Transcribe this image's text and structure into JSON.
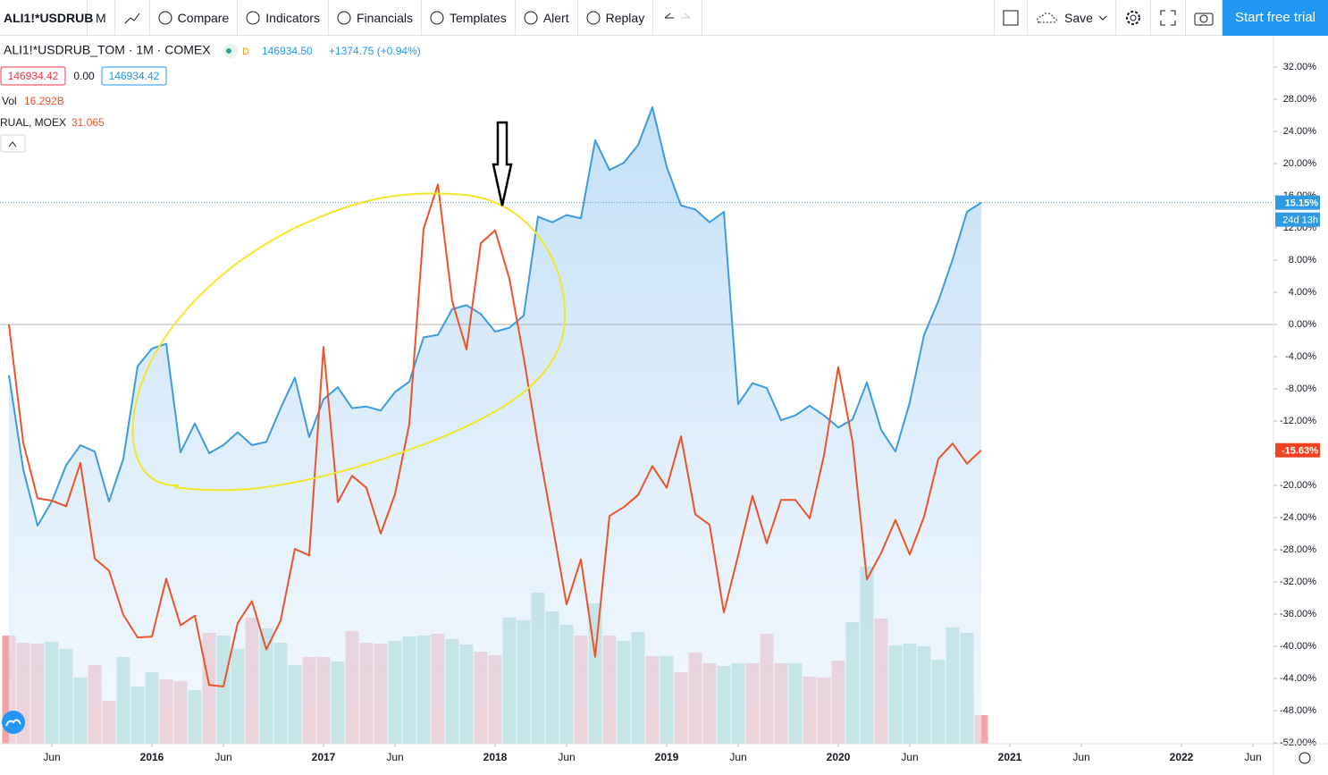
{
  "toolbar": {
    "symbol": "ALI1!*USDRUB",
    "interval": "M",
    "buttons": [
      "Compare",
      "Indicators",
      "Financials",
      "Templates",
      "Alert",
      "Replay"
    ],
    "save": "Save",
    "trial": "Start free trial"
  },
  "legend": {
    "title": "ALI1!*USDRUB_TOM · 1M · COMEX",
    "flag": "D",
    "price": "146934.50",
    "change": "+1374.75 (+0.94%)",
    "bid": "146934.42",
    "spread": "0.00",
    "ask": "146934.42",
    "vol_label": "Vol",
    "vol_value": "16.292B",
    "compare": "RUAL, MOEX",
    "compare_value": "31.065"
  },
  "chart_data": {
    "type": "line",
    "series": [
      {
        "color": "#3d9be0",
        "values": [
          -6.3,
          -18,
          -25,
          -22,
          -17.5,
          -15,
          -15.8,
          -22,
          -16.7,
          -5.2,
          -3,
          -2.4,
          -15.9,
          -12.3,
          -16,
          -15,
          -13.4,
          -15,
          -14.6,
          -10.4,
          -6.6,
          -14,
          -9.3,
          -7.8,
          -10.4,
          -10.2,
          -10.7,
          -8.4,
          -7.1,
          -1.6,
          -1.3,
          1.9,
          2.4,
          1.3,
          -0.9,
          -0.4,
          1.1,
          13.4,
          12.7,
          13.6,
          13.2,
          22.9,
          19.2,
          20.1,
          22.3,
          27,
          19.6,
          14.8,
          14.3,
          12.7,
          14,
          -9.9,
          -7.3,
          -7.9,
          -11.9,
          -11.3,
          -10.1,
          -11.3,
          -12.8,
          -11.8,
          -7.2,
          -13.1,
          -15.8,
          -9.7,
          -1.3,
          2.9,
          8.1,
          14,
          15.15
        ],
        "last_label": "15.15%",
        "countdown": "24d 13h",
        "badge_color": "#2f9ae4"
      },
      {
        "color": "#ec5428",
        "values": [
          0,
          -14.7,
          -21.6,
          -21.9,
          -22.6,
          -17.2,
          -29.1,
          -30.6,
          -36.1,
          -38.9,
          -38.8,
          -31.6,
          -37.4,
          -36.2,
          -44.8,
          -45,
          -37.1,
          -34.4,
          -40.4,
          -36.8,
          -27.9,
          -28.7,
          -2.8,
          -22.1,
          -18.8,
          -20.3,
          -26,
          -21.1,
          -12.4,
          11.9,
          17.4,
          2.9,
          -3.1,
          10.1,
          11.7,
          5.7,
          -4.1,
          -14.9,
          -24.8,
          -34.8,
          -29.2,
          -41.3,
          -23.8,
          -22.7,
          -21.2,
          -17.6,
          -20.3,
          -13.9,
          -23.6,
          -24.9,
          -35.8,
          -28.7,
          -21.3,
          -27.2,
          -21.8,
          -21.8,
          -24.1,
          -16.3,
          -5.3,
          -14.6,
          -31.7,
          -28.4,
          -24.3,
          -28.6,
          -23.9,
          -16.7,
          -14.8,
          -17.3,
          -15.63
        ],
        "last_label": "-15.63%",
        "badge_color": "#f0421e"
      }
    ],
    "volume": {
      "values": [
        61.6,
        57.5,
        57.0,
        58.0,
        54.0,
        37.7,
        44.8,
        24.4,
        49.4,
        32.6,
        40.7,
        36.6,
        35.6,
        30.5,
        63.1,
        61.6,
        54.0,
        71.8,
        65.7,
        57.5,
        44.8,
        49.4,
        49.4,
        46.8,
        64.1,
        57.5,
        57.0,
        58.5,
        61.1,
        61.6,
        62.6,
        59.6,
        56.5,
        52.4,
        50.4,
        71.8,
        70.2,
        86.0,
        75.3,
        67.7,
        61.6,
        79.9,
        61.6,
        58.5,
        63.6,
        49.9,
        49.9,
        40.7,
        51.9,
        45.8,
        44.3,
        45.8,
        45.8,
        62.6,
        45.8,
        45.8,
        38.2,
        37.7,
        47.3,
        69.2,
        100.8,
        71.3,
        56.0,
        57.0,
        55.5,
        47.8,
        66.2,
        63.1,
        16.292
      ],
      "directions": [
        "down",
        "down",
        "down",
        "up",
        "up",
        "up",
        "down",
        "down",
        "up",
        "up",
        "up",
        "down",
        "down",
        "up",
        "down",
        "up",
        "up",
        "down",
        "up",
        "up",
        "up",
        "down",
        "down",
        "up",
        "down",
        "down",
        "down",
        "up",
        "up",
        "up",
        "down",
        "up",
        "up",
        "down",
        "down",
        "up",
        "up",
        "up",
        "up",
        "up",
        "down",
        "up",
        "down",
        "up",
        "up",
        "down",
        "up",
        "down",
        "down",
        "down",
        "up",
        "up",
        "down",
        "down",
        "down",
        "up",
        "down",
        "down",
        "down",
        "up",
        "up",
        "down",
        "up",
        "up",
        "up",
        "up",
        "up",
        "up",
        "down"
      ],
      "up_color": "#8fd1c7",
      "down_color": "#f2a4a9",
      "ylim": [
        0,
        200
      ]
    },
    "baseline": 0,
    "ylim": [
      -52.11,
      35.89
    ],
    "yticks": [
      {
        "value": 32,
        "label": "32.00%"
      },
      {
        "value": 28,
        "label": "28.00%"
      },
      {
        "value": 24,
        "label": "24.00%"
      },
      {
        "value": 20,
        "label": "20.00%"
      },
      {
        "value": 16,
        "label": "16.00%"
      },
      {
        "value": 12,
        "label": "12.00%"
      },
      {
        "value": 8,
        "label": "8.00%"
      },
      {
        "value": 4,
        "label": "4.00%"
      },
      {
        "value": 0,
        "label": "0.00%"
      },
      {
        "value": -4,
        "label": "-4.00%"
      },
      {
        "value": -8,
        "label": "-8.00%"
      },
      {
        "value": -12,
        "label": "-12.00%"
      },
      {
        "value": -16,
        "label": "-16.00%"
      },
      {
        "value": -20,
        "label": "-20.00%"
      },
      {
        "value": -24,
        "label": "-24.00%"
      },
      {
        "value": -28,
        "label": "-28.00%"
      },
      {
        "value": -32,
        "label": "-32.00%"
      },
      {
        "value": -36,
        "label": "-36.00%"
      },
      {
        "value": -40,
        "label": "-40.00%"
      },
      {
        "value": -44,
        "label": "-44.00%"
      },
      {
        "value": -48,
        "label": "-48.00%"
      },
      {
        "value": -52,
        "label": "-52.00%"
      }
    ],
    "xlim": [
      -0.625,
      88.4375
    ],
    "xticks": [
      {
        "value": 3,
        "label": "Jun"
      },
      {
        "value": 10,
        "label": "2016"
      },
      {
        "value": 15,
        "label": "Jun"
      },
      {
        "value": 22,
        "label": "2017"
      },
      {
        "value": 27,
        "label": "Jun"
      },
      {
        "value": 34,
        "label": "2018"
      },
      {
        "value": 39,
        "label": "Jun"
      },
      {
        "value": 46,
        "label": "2019"
      },
      {
        "value": 51,
        "label": "Jun"
      },
      {
        "value": 58,
        "label": "2020"
      },
      {
        "value": 63,
        "label": "Jun"
      },
      {
        "value": 70,
        "label": "2021"
      },
      {
        "value": 75,
        "label": "Jun"
      },
      {
        "value": 82,
        "label": "2022"
      },
      {
        "value": 87,
        "label": "Jun"
      }
    ]
  }
}
